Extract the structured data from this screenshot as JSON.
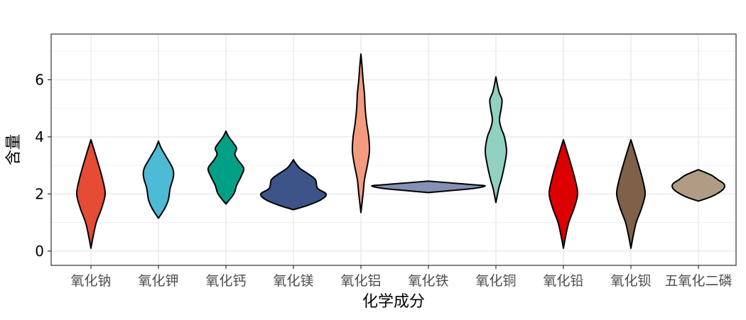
{
  "chart_data": {
    "type": "violin",
    "xlabel": "化学成分",
    "ylabel": "含量",
    "ylim": [
      -0.5,
      7.6
    ],
    "yticks": [
      0,
      2,
      4,
      6
    ],
    "grid": true,
    "legend": "none",
    "categories": [
      "氧化钠",
      "氧化钾",
      "氧化钙",
      "氧化镁",
      "氧化铝",
      "氧化铁",
      "氧化铜",
      "氧化铅",
      "氧化钡",
      "五氧化二磷"
    ],
    "series": [
      {
        "category": "氧化钠",
        "color": "#E64B35",
        "min": 0.1,
        "max": 3.9,
        "profile": [
          [
            0.1,
            0.0
          ],
          [
            0.5,
            0.06
          ],
          [
            1.0,
            0.15
          ],
          [
            1.5,
            0.3
          ],
          [
            2.0,
            0.4
          ],
          [
            2.5,
            0.33
          ],
          [
            3.0,
            0.22
          ],
          [
            3.5,
            0.1
          ],
          [
            3.9,
            0.0
          ]
        ]
      },
      {
        "category": "氧化钾",
        "color": "#4DBBD5",
        "min": 1.15,
        "max": 3.85,
        "profile": [
          [
            1.15,
            0.0
          ],
          [
            1.5,
            0.18
          ],
          [
            1.8,
            0.28
          ],
          [
            2.2,
            0.33
          ],
          [
            2.6,
            0.42
          ],
          [
            2.9,
            0.4
          ],
          [
            3.3,
            0.22
          ],
          [
            3.6,
            0.08
          ],
          [
            3.85,
            0.0
          ]
        ]
      },
      {
        "category": "氧化钙",
        "color": "#00A087",
        "min": 1.65,
        "max": 4.2,
        "profile": [
          [
            1.65,
            0.0
          ],
          [
            2.0,
            0.22
          ],
          [
            2.3,
            0.3
          ],
          [
            2.6,
            0.42
          ],
          [
            2.9,
            0.5
          ],
          [
            3.2,
            0.33
          ],
          [
            3.4,
            0.25
          ],
          [
            3.6,
            0.3
          ],
          [
            3.8,
            0.2
          ],
          [
            4.0,
            0.08
          ],
          [
            4.2,
            0.0
          ]
        ]
      },
      {
        "category": "氧化镁",
        "color": "#3C5488",
        "min": 1.45,
        "max": 3.2,
        "profile": [
          [
            1.45,
            0.0
          ],
          [
            1.6,
            0.4
          ],
          [
            1.8,
            0.78
          ],
          [
            2.0,
            0.92
          ],
          [
            2.2,
            0.68
          ],
          [
            2.5,
            0.62
          ],
          [
            2.7,
            0.42
          ],
          [
            2.9,
            0.18
          ],
          [
            3.1,
            0.05
          ],
          [
            3.2,
            0.0
          ]
        ]
      },
      {
        "category": "氧化铝",
        "color": "#F39B7F",
        "min": 1.35,
        "max": 6.9,
        "profile": [
          [
            1.35,
            0.0
          ],
          [
            2.0,
            0.06
          ],
          [
            2.5,
            0.1
          ],
          [
            3.0,
            0.18
          ],
          [
            3.5,
            0.24
          ],
          [
            4.0,
            0.22
          ],
          [
            4.5,
            0.16
          ],
          [
            5.0,
            0.12
          ],
          [
            5.5,
            0.1
          ],
          [
            6.0,
            0.06
          ],
          [
            6.5,
            0.03
          ],
          [
            6.9,
            0.0
          ]
        ]
      },
      {
        "category": "氧化铁",
        "color": "#8491B4",
        "min": 2.05,
        "max": 2.45,
        "profile": [
          [
            2.05,
            0.0
          ],
          [
            2.12,
            0.65
          ],
          [
            2.2,
            1.3
          ],
          [
            2.28,
            1.6
          ],
          [
            2.32,
            1.3
          ],
          [
            2.38,
            0.7
          ],
          [
            2.45,
            0.0
          ]
        ]
      },
      {
        "category": "氧化铜",
        "color": "#91D1C2",
        "min": 1.7,
        "max": 6.1,
        "profile": [
          [
            1.7,
            0.0
          ],
          [
            2.2,
            0.08
          ],
          [
            2.5,
            0.15
          ],
          [
            3.0,
            0.24
          ],
          [
            3.5,
            0.3
          ],
          [
            4.0,
            0.24
          ],
          [
            4.3,
            0.15
          ],
          [
            4.6,
            0.1
          ],
          [
            5.0,
            0.15
          ],
          [
            5.3,
            0.17
          ],
          [
            5.6,
            0.08
          ],
          [
            6.1,
            0.0
          ]
        ]
      },
      {
        "category": "氧化铅",
        "color": "#DC0000",
        "min": 0.1,
        "max": 3.9,
        "profile": [
          [
            0.1,
            0.0
          ],
          [
            0.5,
            0.06
          ],
          [
            1.0,
            0.15
          ],
          [
            1.5,
            0.3
          ],
          [
            2.0,
            0.4
          ],
          [
            2.5,
            0.33
          ],
          [
            3.0,
            0.22
          ],
          [
            3.5,
            0.1
          ],
          [
            3.9,
            0.0
          ]
        ]
      },
      {
        "category": "氧化钡",
        "color": "#7E6148",
        "min": 0.1,
        "max": 3.9,
        "profile": [
          [
            0.1,
            0.0
          ],
          [
            0.5,
            0.06
          ],
          [
            1.0,
            0.15
          ],
          [
            1.5,
            0.3
          ],
          [
            2.0,
            0.4
          ],
          [
            2.5,
            0.33
          ],
          [
            3.0,
            0.22
          ],
          [
            3.5,
            0.1
          ],
          [
            3.9,
            0.0
          ]
        ]
      },
      {
        "category": "五氧化二磷",
        "color": "#B09C85",
        "min": 1.75,
        "max": 2.85,
        "profile": [
          [
            1.75,
            0.0
          ],
          [
            1.9,
            0.35
          ],
          [
            2.05,
            0.58
          ],
          [
            2.2,
            0.72
          ],
          [
            2.35,
            0.72
          ],
          [
            2.5,
            0.55
          ],
          [
            2.65,
            0.38
          ],
          [
            2.75,
            0.2
          ],
          [
            2.85,
            0.0
          ]
        ]
      }
    ]
  }
}
